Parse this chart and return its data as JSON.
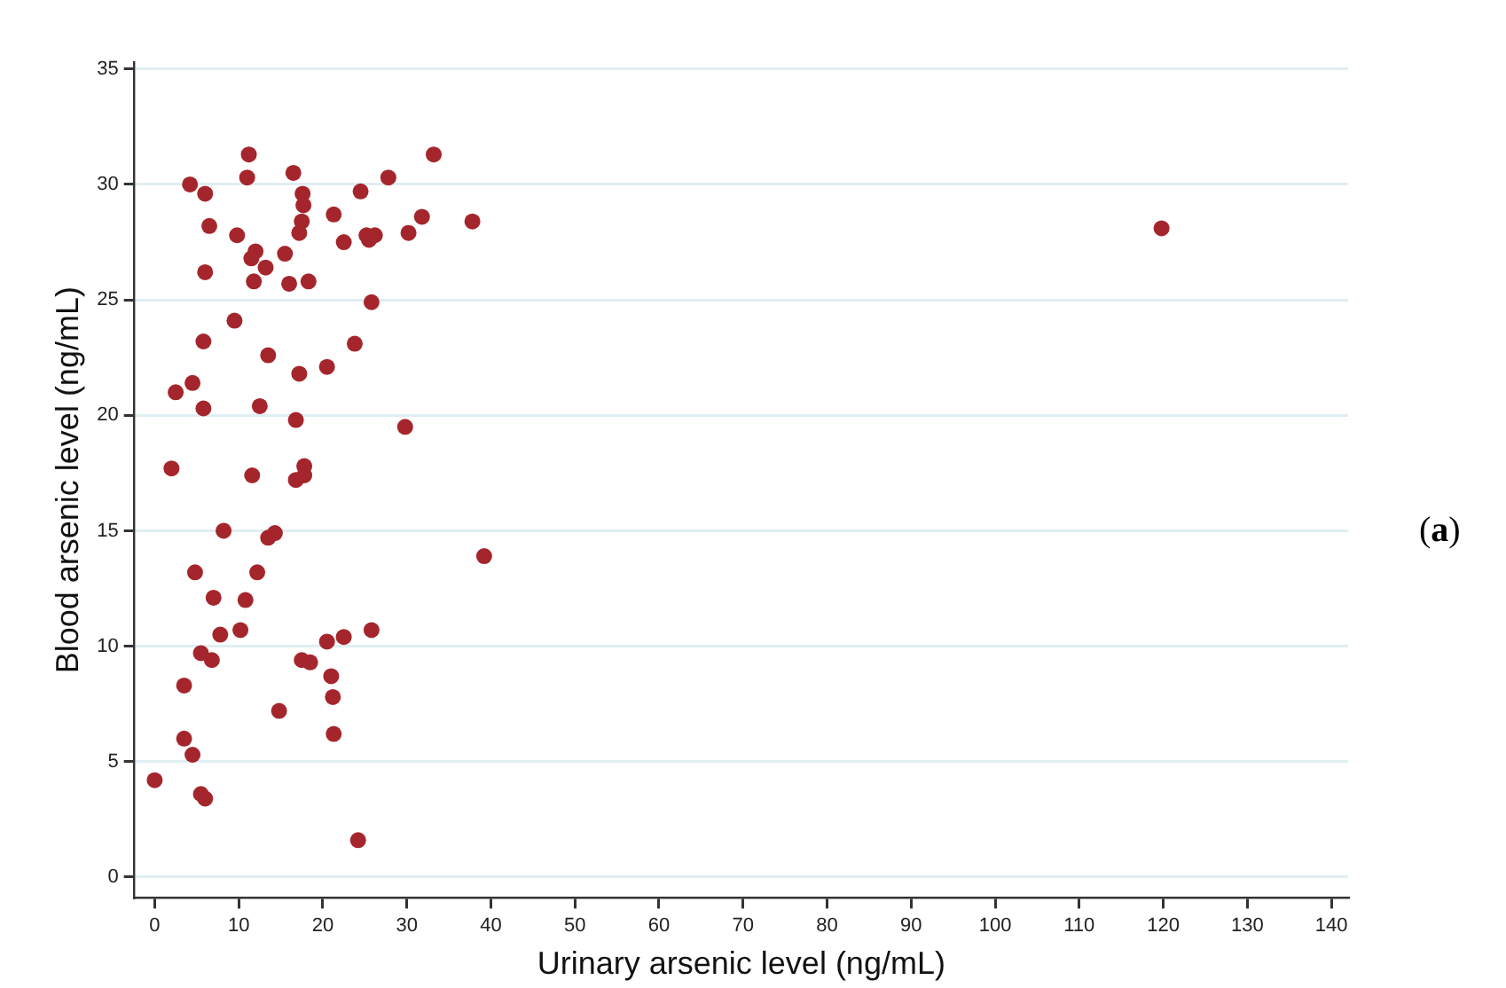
{
  "chart_data": {
    "type": "scatter",
    "xlabel": "Urinary arsenic level (ng/mL)",
    "ylabel": "Blood arsenic level (ng/mL)",
    "annotations": [
      "(a)"
    ],
    "xlim": [
      -2.4,
      142
    ],
    "xticks": [
      0,
      10,
      20,
      30,
      40,
      50,
      60,
      70,
      80,
      90,
      100,
      110,
      120,
      130,
      140
    ],
    "ylim": [
      -0.9,
      35.3
    ],
    "yticks": [
      0,
      5,
      10,
      15,
      20,
      25,
      30,
      35
    ],
    "grid": "y",
    "marker": "circle",
    "series": [
      {
        "color": "#a4262c",
        "x": [
          0,
          2,
          2.5,
          3.5,
          3.5,
          4.2,
          4.5,
          4.5,
          4.8,
          5.5,
          5.5,
          5.8,
          5.8,
          6,
          6,
          6,
          6.5,
          6.8,
          7,
          7.8,
          8.2,
          9.5,
          9.8,
          10.2,
          10.8,
          11,
          11.2,
          11.5,
          11.6,
          11.8,
          12,
          12.2,
          12.5,
          13.2,
          13.5,
          13.5,
          14.3,
          14.8,
          15.5,
          16,
          16.5,
          16.8,
          16.8,
          17.2,
          17.2,
          17.5,
          17.5,
          17.6,
          17.7,
          17.8,
          17.8,
          18.3,
          18.5,
          20.5,
          20.5,
          21,
          21.2,
          21.3,
          21.3,
          22.5,
          22.5,
          23.8,
          24.2,
          24.5,
          25.2,
          25.5,
          25.8,
          25.8,
          26.2,
          27.8,
          29.8,
          30.2,
          31.8,
          33.2,
          37.8,
          39.2,
          119.8
        ],
        "values": [
          4.2,
          17.7,
          21,
          8.3,
          6,
          30,
          21.4,
          5.3,
          13.2,
          9.7,
          3.6,
          23.2,
          20.3,
          26.2,
          29.6,
          3.4,
          28.2,
          9.4,
          12.1,
          10.5,
          15,
          24.1,
          27.8,
          10.7,
          12,
          30.3,
          31.3,
          26.8,
          17.4,
          25.8,
          27.1,
          13.2,
          20.4,
          26.4,
          22.6,
          14.7,
          14.9,
          7.2,
          27,
          25.7,
          30.5,
          19.8,
          17.2,
          27.9,
          21.8,
          28.4,
          9.4,
          29.6,
          29.1,
          17.8,
          17.4,
          25.8,
          9.3,
          22.1,
          10.2,
          8.7,
          7.8,
          28.7,
          6.2,
          10.4,
          27.5,
          23.1,
          1.6,
          29.7,
          27.8,
          27.6,
          24.9,
          10.7,
          27.8,
          30.3,
          19.5,
          27.9,
          28.6,
          31.3,
          28.4,
          13.9,
          28.1
        ]
      }
    ]
  }
}
